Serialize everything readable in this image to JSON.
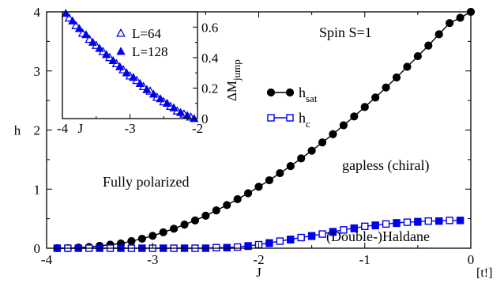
{
  "chart_data": [
    {
      "type": "line",
      "xlabel": "J",
      "ylabel": "h",
      "xlim": [
        -4,
        0
      ],
      "ylim": [
        0,
        4
      ],
      "xticks": [
        -4,
        -3,
        -2,
        -1,
        0
      ],
      "yticks": [
        0,
        1,
        2,
        3,
        4
      ],
      "annotations": [
        {
          "key": "spin",
          "text": "Spin S=1"
        },
        {
          "key": "gapless",
          "text": "gapless (chiral)"
        },
        {
          "key": "polarized",
          "text": "Fully polarized"
        },
        {
          "key": "haldane",
          "text": "(Double-)Haldane"
        },
        {
          "key": "corner",
          "text": "[t!]"
        }
      ],
      "legend": [
        {
          "base": "h",
          "sub": "sat",
          "marker": "filled-circle",
          "color": "#000000"
        },
        {
          "base": "h",
          "sub": "c",
          "marker": "open-square",
          "color": "#0000ee"
        }
      ],
      "series": [
        {
          "name": "h_sat",
          "color": "#000000",
          "marker": "filled-circle",
          "x": [
            -3.9,
            -3.8,
            -3.7,
            -3.6,
            -3.5,
            -3.4,
            -3.3,
            -3.2,
            -3.1,
            -3.0,
            -2.9,
            -2.8,
            -2.7,
            -2.6,
            -2.5,
            -2.4,
            -2.3,
            -2.2,
            -2.1,
            -2.0,
            -1.9,
            -1.8,
            -1.7,
            -1.6,
            -1.5,
            -1.4,
            -1.3,
            -1.2,
            -1.1,
            -1.0,
            -0.9,
            -0.8,
            -0.7,
            -0.6,
            -0.5,
            -0.4,
            -0.3,
            -0.2,
            -0.1,
            0.0
          ],
          "y": [
            0.0,
            0.0,
            0.01,
            0.02,
            0.04,
            0.06,
            0.08,
            0.12,
            0.16,
            0.21,
            0.27,
            0.33,
            0.4,
            0.47,
            0.55,
            0.64,
            0.73,
            0.83,
            0.93,
            1.04,
            1.15,
            1.27,
            1.39,
            1.52,
            1.65,
            1.79,
            1.93,
            2.08,
            2.23,
            2.39,
            2.55,
            2.72,
            2.89,
            3.07,
            3.25,
            3.43,
            3.62,
            3.81,
            3.9,
            4.0
          ]
        },
        {
          "name": "h_c",
          "color": "#0000ee",
          "marker": "open-square",
          "x": [
            -3.9,
            -3.8,
            -3.7,
            -3.6,
            -3.5,
            -3.4,
            -3.3,
            -3.2,
            -3.1,
            -3.0,
            -2.9,
            -2.8,
            -2.7,
            -2.6,
            -2.5,
            -2.4,
            -2.3,
            -2.2,
            -2.1,
            -2.0,
            -1.9,
            -1.8,
            -1.7,
            -1.6,
            -1.5,
            -1.4,
            -1.3,
            -1.2,
            -1.1,
            -1.0,
            -0.9,
            -0.8,
            -0.7,
            -0.6,
            -0.5,
            -0.4,
            -0.3,
            -0.2,
            -0.1
          ],
          "y": [
            0.0,
            0.0,
            0.0,
            0.0,
            0.0,
            0.0,
            0.0,
            0.0,
            0.0,
            0.0,
            0.0,
            0.0,
            0.0,
            0.0,
            0.0,
            0.01,
            0.01,
            0.02,
            0.04,
            0.06,
            0.09,
            0.12,
            0.15,
            0.18,
            0.21,
            0.24,
            0.28,
            0.31,
            0.34,
            0.37,
            0.39,
            0.41,
            0.43,
            0.44,
            0.45,
            0.46,
            0.46,
            0.47,
            0.47
          ]
        },
        {
          "name": "h_c_filled",
          "color": "#0000ee",
          "marker": "filled-square",
          "x": [
            -3.9,
            -3.7,
            -3.5,
            -3.3,
            -3.1,
            -2.9,
            -2.7,
            -2.5,
            -2.3,
            -2.1,
            -1.9,
            -1.7,
            -1.5,
            -1.3,
            -1.1,
            -0.9,
            -0.7,
            -0.5,
            -0.3,
            -0.1
          ],
          "y": [
            0.0,
            0.0,
            0.0,
            0.0,
            0.0,
            0.0,
            0.0,
            0.0,
            0.01,
            0.03,
            0.08,
            0.14,
            0.2,
            0.27,
            0.33,
            0.38,
            0.42,
            0.44,
            0.46,
            0.47
          ]
        }
      ]
    },
    {
      "type": "scatter",
      "xlabel": "J",
      "ylabel_base": "ΔM",
      "ylabel_sub": "jump",
      "xlim": [
        -4,
        -2
      ],
      "ylim": [
        0,
        0.7
      ],
      "xticks": [
        -4,
        -3,
        -2
      ],
      "yticks": [
        0,
        0.2,
        0.4,
        0.6
      ],
      "series": [
        {
          "name": "L=64",
          "color": "#0000ee",
          "marker": "open-triangle",
          "x": [
            -3.9,
            -3.8,
            -3.7,
            -3.6,
            -3.5,
            -3.4,
            -3.3,
            -3.2,
            -3.1,
            -3.0,
            -2.9,
            -2.8,
            -2.7,
            -2.6,
            -2.5,
            -2.4,
            -2.3,
            -2.2,
            -2.1
          ],
          "y": [
            0.66,
            0.61,
            0.56,
            0.52,
            0.48,
            0.44,
            0.4,
            0.36,
            0.32,
            0.28,
            0.25,
            0.21,
            0.18,
            0.14,
            0.11,
            0.08,
            0.05,
            0.03,
            0.01
          ]
        },
        {
          "name": "L=128",
          "color": "#0000ee",
          "marker": "filled-triangle",
          "x": [
            -3.95,
            -3.85,
            -3.75,
            -3.65,
            -3.55,
            -3.45,
            -3.35,
            -3.25,
            -3.15,
            -3.05,
            -2.95,
            -2.85,
            -2.75,
            -2.65,
            -2.55,
            -2.45,
            -2.35,
            -2.25,
            -2.15,
            -2.05
          ],
          "y": [
            0.69,
            0.64,
            0.59,
            0.55,
            0.5,
            0.46,
            0.42,
            0.38,
            0.34,
            0.3,
            0.27,
            0.23,
            0.19,
            0.16,
            0.13,
            0.1,
            0.07,
            0.04,
            0.02,
            0.0
          ]
        }
      ]
    }
  ]
}
